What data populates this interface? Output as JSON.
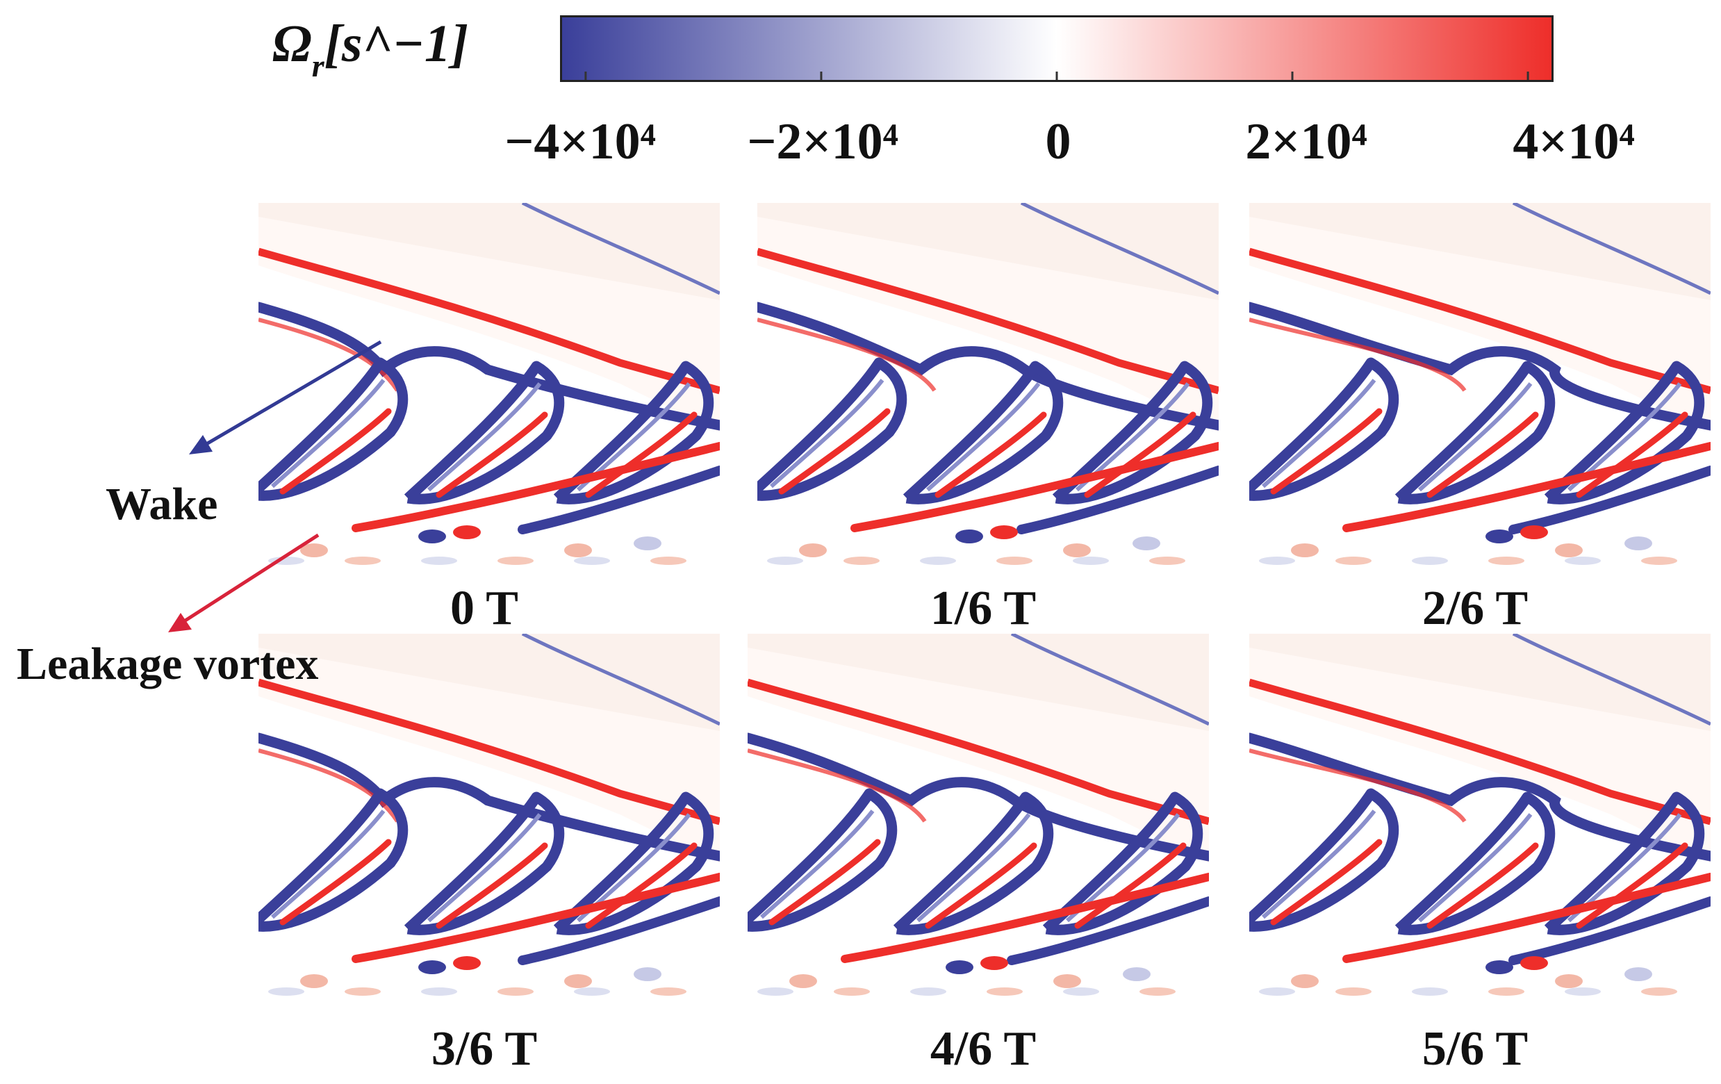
{
  "colorbar": {
    "label": "Ω",
    "label_sub": "r",
    "label_unit": "[s^−1]",
    "ticks": [
      "−4×10⁴",
      "−2×10⁴",
      "0",
      "2×10⁴",
      "4×10⁴"
    ],
    "tick_values": [
      -40000,
      -20000,
      0,
      20000,
      40000
    ],
    "range": [
      -42000,
      42000
    ],
    "colors": {
      "negative": "#3a3f9a",
      "zero": "#ffffff",
      "positive": "#ee2e2a"
    }
  },
  "panels": [
    {
      "title": "0 T"
    },
    {
      "title": "1/6 T"
    },
    {
      "title": "2/6 T"
    },
    {
      "title": "3/6 T"
    },
    {
      "title": "4/6 T"
    },
    {
      "title": "5/6 T"
    }
  ],
  "annotations": {
    "wake": "Wake",
    "leakage_vortex": "Leakage vortex",
    "wake_color": "#323a94",
    "leakage_color": "#d8233a"
  }
}
